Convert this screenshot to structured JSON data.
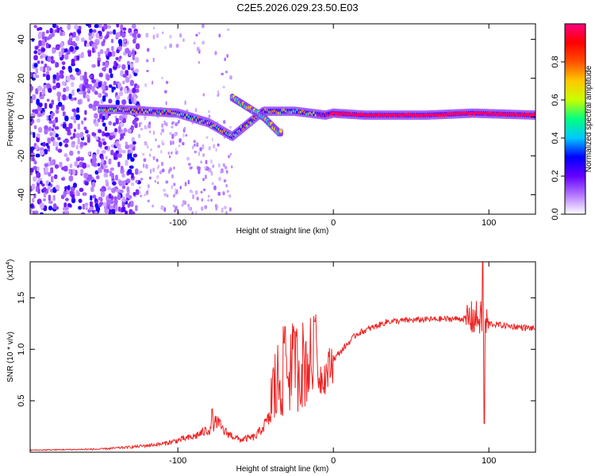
{
  "title": "C2E5.2026.029.23.50.E03",
  "chart_data": [
    {
      "type": "heatmap",
      "name": "spectrogram",
      "xlabel": "Height of straight line (km)",
      "ylabel": "Frequency (Hz)",
      "xlim": [
        -195,
        130
      ],
      "ylim": [
        -50,
        48
      ],
      "x_ticks": [
        -100,
        0,
        100
      ],
      "x_tick_labels": [
        "-100",
        "0",
        "100"
      ],
      "y_ticks": [
        -40,
        -20,
        0,
        20,
        40
      ],
      "y_tick_labels": [
        "-40",
        "-20",
        "0",
        "20",
        "40"
      ],
      "colorbar": {
        "label": "Normalized spectral amplitude",
        "range": [
          0,
          1
        ],
        "ticks": [
          0.0,
          0.2,
          0.4,
          0.6,
          0.8
        ],
        "tick_labels": [
          "0.0",
          "0.2",
          "0.4",
          "0.6",
          "0.8"
        ],
        "colors": [
          "#ffffff",
          "#b478ff",
          "#6400ff",
          "#0000ff",
          "#00c8ff",
          "#00ff80",
          "#c8ff00",
          "#ffc800",
          "#ff5000",
          "#ff0000",
          "#ff0080"
        ]
      },
      "ridge_tracks": [
        {
          "name": "main-ridge",
          "x": [
            -140,
            -120,
            -100,
            -80,
            -65,
            -45,
            -25,
            -5,
            0,
            20,
            60,
            90,
            130
          ],
          "y": [
            4,
            3,
            2,
            -3,
            -10,
            3,
            3,
            1,
            2,
            1,
            1,
            2,
            1
          ]
        },
        {
          "name": "upper-branch",
          "x": [
            -65,
            -55,
            -45,
            -35
          ],
          "y": [
            10,
            5,
            0,
            -8
          ]
        }
      ]
    },
    {
      "type": "line",
      "name": "snr-trace",
      "xlabel": "Height of straight line (km)",
      "ylabel": "SNR (10 * v/v)",
      "exponent_label": "(x10",
      "exponent_power": "4",
      "exponent_close": ")",
      "xlim": [
        -195,
        130
      ],
      "ylim": [
        0,
        1.85
      ],
      "x_ticks": [
        -100,
        0,
        100
      ],
      "x_tick_labels": [
        "-100",
        "0",
        "100"
      ],
      "y_ticks": [
        0.5,
        1.0,
        1.5
      ],
      "y_tick_labels": [
        "0.5",
        "1.0",
        "1.5"
      ],
      "line_color": "#ee2222",
      "envelope": {
        "x": [
          -195,
          -150,
          -130,
          -110,
          -90,
          -80,
          -75,
          -70,
          -60,
          -50,
          -40,
          -32,
          -25,
          -15,
          -5,
          0,
          15,
          35,
          60,
          90,
          95,
          97,
          100,
          110,
          130
        ],
        "y": [
          0.02,
          0.03,
          0.05,
          0.08,
          0.15,
          0.22,
          0.3,
          0.2,
          0.12,
          0.15,
          0.35,
          0.6,
          0.65,
          0.7,
          0.75,
          0.9,
          1.15,
          1.27,
          1.29,
          1.3,
          1.3,
          1.25,
          1.25,
          1.23,
          1.2
        ]
      },
      "spikes": [
        {
          "x": -78,
          "y": 0.42
        },
        {
          "x": -31,
          "y": 1.22
        },
        {
          "x": -25,
          "y": 1.17
        },
        {
          "x": -12,
          "y": 1.27
        },
        {
          "x": 96,
          "y": 1.85
        },
        {
          "x": 97,
          "y": 0.28
        }
      ]
    }
  ]
}
